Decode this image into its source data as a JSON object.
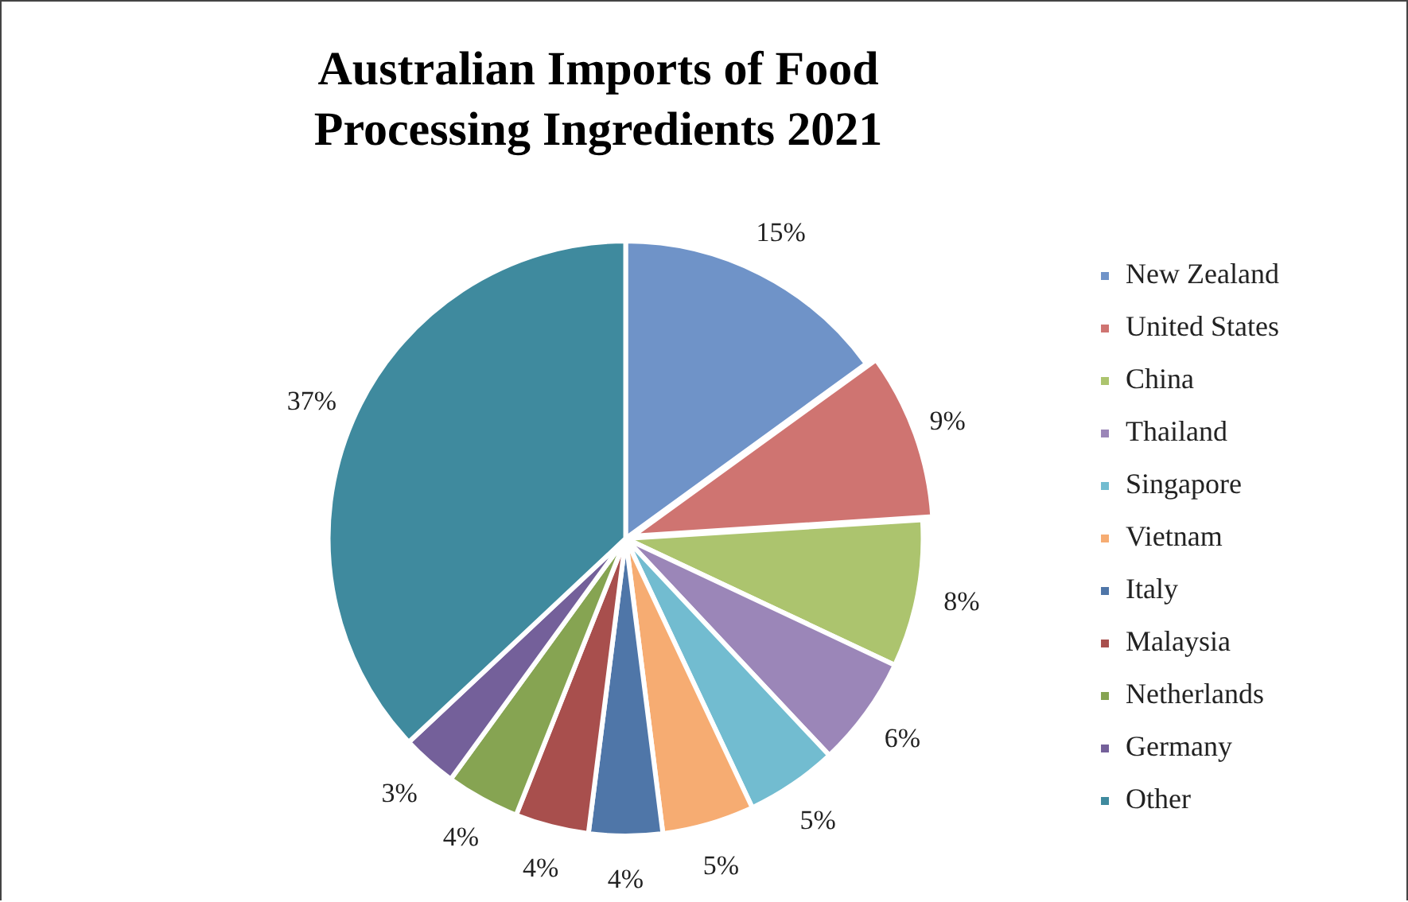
{
  "chart_data": {
    "type": "pie",
    "title": "Australian Imports of Food Processing Ingredients 2021",
    "categories": [
      "New Zealand",
      "United States",
      "China",
      "Thailand",
      "Singapore",
      "Vietnam",
      "Italy",
      "Malaysia",
      "Netherlands",
      "Germany",
      "Other"
    ],
    "values": [
      15,
      9,
      8,
      6,
      5,
      5,
      4,
      4,
      4,
      3,
      37
    ],
    "value_labels": [
      "15%",
      "9%",
      "8%",
      "6%",
      "5%",
      "5%",
      "4%",
      "4%",
      "4%",
      "3%",
      "37%"
    ],
    "colors": [
      "#6f93c8",
      "#cf7471",
      "#acc46e",
      "#9b86b8",
      "#72bcd0",
      "#f6ac72",
      "#4f76a8",
      "#a84f4d",
      "#86a452",
      "#74609a",
      "#3f8a9e"
    ],
    "legend": "right"
  }
}
